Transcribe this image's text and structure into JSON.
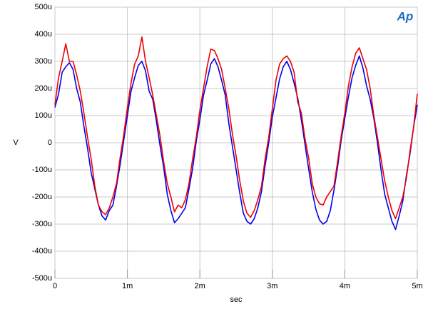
{
  "chart_data": {
    "type": "line",
    "logo": "Ap",
    "xlabel": "sec",
    "ylabel": "V",
    "x": [
      0,
      5e-05,
      0.0001,
      0.00015,
      0.0002,
      0.00025,
      0.0003,
      0.00035,
      0.0004,
      0.00045,
      0.0005,
      0.00055,
      0.0006,
      0.00065,
      0.0007,
      0.00075,
      0.0008,
      0.00085,
      0.0009,
      0.00095,
      0.001,
      0.00105,
      0.0011,
      0.00115,
      0.0012,
      0.00125,
      0.0013,
      0.00135,
      0.0014,
      0.00145,
      0.0015,
      0.00155,
      0.0016,
      0.00165,
      0.0017,
      0.00175,
      0.0018,
      0.00185,
      0.0019,
      0.00195,
      0.002,
      0.00205,
      0.0021,
      0.00215,
      0.0022,
      0.00225,
      0.0023,
      0.00235,
      0.0024,
      0.00245,
      0.0025,
      0.00255,
      0.0026,
      0.00265,
      0.0027,
      0.00275,
      0.0028,
      0.00285,
      0.0029,
      0.00295,
      0.003,
      0.00305,
      0.0031,
      0.00315,
      0.0032,
      0.00325,
      0.0033,
      0.00335,
      0.0034,
      0.00345,
      0.0035,
      0.00355,
      0.0036,
      0.00365,
      0.0037,
      0.00375,
      0.0038,
      0.00385,
      0.0039,
      0.00395,
      0.004,
      0.00405,
      0.0041,
      0.00415,
      0.0042,
      0.00425,
      0.0043,
      0.00435,
      0.0044,
      0.00445,
      0.0045,
      0.00455,
      0.0046,
      0.00465,
      0.0047,
      0.00475,
      0.0048,
      0.00485,
      0.0049,
      0.00495,
      0.005
    ],
    "series": [
      {
        "color": "#0000ee",
        "values": [
          0.00013,
          0.00018,
          0.00026,
          0.00028,
          0.000295,
          0.00027,
          0.0002,
          0.00015,
          6e-05,
          -2e-05,
          -0.00011,
          -0.00017,
          -0.00023,
          -0.00027,
          -0.000285,
          -0.00025,
          -0.00023,
          -0.00016,
          -8e-05,
          1e-05,
          0.0001,
          0.00019,
          0.00024,
          0.000285,
          0.0003,
          0.000265,
          0.00019,
          0.00016,
          8e-05,
          -1e-05,
          -9e-05,
          -0.00019,
          -0.00025,
          -0.000295,
          -0.00028,
          -0.00026,
          -0.00024,
          -0.00017,
          -9.5e-05,
          5e-06,
          8.5e-05,
          0.000175,
          0.00023,
          0.00029,
          0.00031,
          0.00028,
          0.00023,
          0.000175,
          7e-05,
          -1.5e-05,
          -0.0001,
          -0.000185,
          -0.00026,
          -0.00029,
          -0.0003,
          -0.00028,
          -0.00024,
          -0.00018,
          -8.5e-05,
          0,
          9.5e-05,
          0.000165,
          0.000235,
          0.00028,
          0.0003,
          0.00027,
          0.00022,
          0.000165,
          8.5e-05,
          -5e-06,
          -9.5e-05,
          -0.00018,
          -0.000245,
          -0.000285,
          -0.0003,
          -0.00029,
          -0.00025,
          -0.000175,
          -9e-05,
          1e-05,
          9e-05,
          0.00017,
          0.00024,
          0.000285,
          0.00032,
          0.000275,
          0.00021,
          0.00016,
          9e-05,
          0,
          -0.0001,
          -0.00019,
          -0.00024,
          -0.00029,
          -0.00032,
          -0.00027,
          -0.000215,
          -0.00012,
          -4e-05,
          6e-05,
          0.00014
        ]
      },
      {
        "color": "#ee0000",
        "values": [
          0.00014,
          0.00024,
          0.0003,
          0.000365,
          0.0003,
          0.0003,
          0.00025,
          0.00019,
          0.00011,
          2e-05,
          -6e-05,
          -0.00016,
          -0.00023,
          -0.000255,
          -0.000265,
          -0.00024,
          -0.0002,
          -0.00015,
          -5.5e-05,
          3e-05,
          0.00013,
          0.00022,
          0.00029,
          0.00032,
          0.00039,
          0.0003,
          0.00024,
          0.000175,
          0.0001,
          2.5e-05,
          -7e-05,
          -0.00015,
          -0.0002,
          -0.000255,
          -0.00023,
          -0.00024,
          -0.00021,
          -0.00015,
          -6e-05,
          2e-05,
          0.00012,
          0.0002,
          0.00028,
          0.000345,
          0.00034,
          0.00031,
          0.00027,
          0.0002,
          0.000125,
          3e-05,
          -5e-05,
          -0.00014,
          -0.000215,
          -0.00026,
          -0.000275,
          -0.00025,
          -0.00021,
          -0.00016,
          -6e-05,
          2e-05,
          0.000125,
          0.00023,
          0.00029,
          0.00031,
          0.00032,
          0.0003,
          0.00026,
          0.00015,
          0.00011,
          1.5e-05,
          -5.5e-05,
          -0.00015,
          -0.0002,
          -0.000225,
          -0.00023,
          -0.0002,
          -0.00018,
          -0.00016,
          -7e-05,
          2.5e-05,
          0.00011,
          0.00021,
          0.00028,
          0.00033,
          0.00035,
          0.00031,
          0.00027,
          0.0002,
          0.0001,
          2e-05,
          -6e-05,
          -0.00014,
          -0.0002,
          -0.00025,
          -0.00028,
          -0.00024,
          -0.0002,
          -0.00013,
          -3e-05,
          6e-05,
          0.00018
        ]
      }
    ],
    "xlim": [
      0,
      0.005
    ],
    "ylim": [
      -0.0005,
      0.0005
    ],
    "xticks": [
      0,
      {
        "value": 0.001,
        "label": "1m"
      },
      {
        "value": 0.002,
        "label": "2m"
      },
      {
        "value": 0.003,
        "label": "3m"
      },
      {
        "value": 0.004,
        "label": "4m"
      },
      {
        "value": 0.005,
        "label": "5m"
      }
    ],
    "yticks": [
      {
        "value": -0.0005,
        "label": "-500u"
      },
      {
        "value": -0.0004,
        "label": "-400u"
      },
      {
        "value": -0.0003,
        "label": "-300u"
      },
      {
        "value": -0.0002,
        "label": "-200u"
      },
      {
        "value": -0.0001,
        "label": "-100u"
      },
      0,
      {
        "value": 0.0001,
        "label": "100u"
      },
      {
        "value": 0.0002,
        "label": "200u"
      },
      {
        "value": 0.0003,
        "label": "300u"
      },
      {
        "value": 0.0004,
        "label": "400u"
      },
      {
        "value": 0.0005,
        "label": "500u"
      }
    ],
    "grid": true
  }
}
